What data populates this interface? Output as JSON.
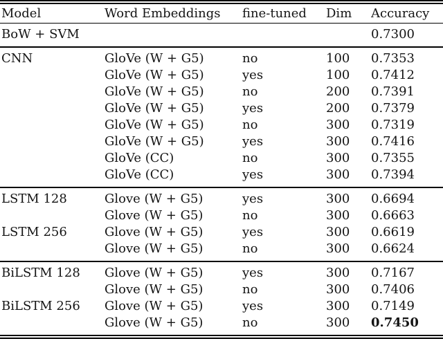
{
  "table": {
    "columns": [
      "Model",
      "Word Embeddings",
      "fine-tuned",
      "Dim",
      "Accuracy"
    ],
    "sections": [
      {
        "rows": [
          {
            "model": "BoW + SVM",
            "embedding": "",
            "finetuned": "",
            "dim": "",
            "accuracy": "0.7300",
            "bold": false
          }
        ]
      },
      {
        "rows": [
          {
            "model": "CNN",
            "embedding": "GloVe (W + G5)",
            "finetuned": "no",
            "dim": "100",
            "accuracy": "0.7353",
            "bold": false
          },
          {
            "model": "",
            "embedding": "GloVe (W + G5)",
            "finetuned": "yes",
            "dim": "100",
            "accuracy": "0.7412",
            "bold": false
          },
          {
            "model": "",
            "embedding": "GloVe (W + G5)",
            "finetuned": "no",
            "dim": "200",
            "accuracy": "0.7391",
            "bold": false
          },
          {
            "model": "",
            "embedding": "GloVe (W + G5)",
            "finetuned": "yes",
            "dim": "200",
            "accuracy": "0.7379",
            "bold": false
          },
          {
            "model": "",
            "embedding": "GloVe (W + G5)",
            "finetuned": "no",
            "dim": "300",
            "accuracy": "0.7319",
            "bold": false
          },
          {
            "model": "",
            "embedding": "GloVe (W + G5)",
            "finetuned": "yes",
            "dim": "300",
            "accuracy": "0.7416",
            "bold": false
          },
          {
            "model": "",
            "embedding": "GloVe (CC)",
            "finetuned": "no",
            "dim": "300",
            "accuracy": "0.7355",
            "bold": false
          },
          {
            "model": "",
            "embedding": "GloVe (CC)",
            "finetuned": "yes",
            "dim": "300",
            "accuracy": "0.7394",
            "bold": false
          }
        ]
      },
      {
        "rows": [
          {
            "model": "LSTM 128",
            "embedding": "Glove (W + G5)",
            "finetuned": "yes",
            "dim": "300",
            "accuracy": "0.6694",
            "bold": false
          },
          {
            "model": "",
            "embedding": "Glove (W + G5)",
            "finetuned": "no",
            "dim": "300",
            "accuracy": "0.6663",
            "bold": false
          },
          {
            "model": "LSTM 256",
            "embedding": "Glove (W + G5)",
            "finetuned": "yes",
            "dim": "300",
            "accuracy": "0.6619",
            "bold": false
          },
          {
            "model": "",
            "embedding": "Glove (W + G5)",
            "finetuned": "no",
            "dim": "300",
            "accuracy": "0.6624",
            "bold": false
          }
        ]
      },
      {
        "rows": [
          {
            "model": "BiLSTM 128",
            "embedding": "Glove (W + G5)",
            "finetuned": "yes",
            "dim": "300",
            "accuracy": "0.7167",
            "bold": false
          },
          {
            "model": "",
            "embedding": "Glove (W + G5)",
            "finetuned": "no",
            "dim": "300",
            "accuracy": "0.7406",
            "bold": false
          },
          {
            "model": "BiLSTM 256",
            "embedding": "Glove (W + G5)",
            "finetuned": "yes",
            "dim": "300",
            "accuracy": "0.7149",
            "bold": false
          },
          {
            "model": "",
            "embedding": "Glove (W + G5)",
            "finetuned": "no",
            "dim": "300",
            "accuracy": "0.7450",
            "bold": true
          }
        ]
      }
    ]
  }
}
